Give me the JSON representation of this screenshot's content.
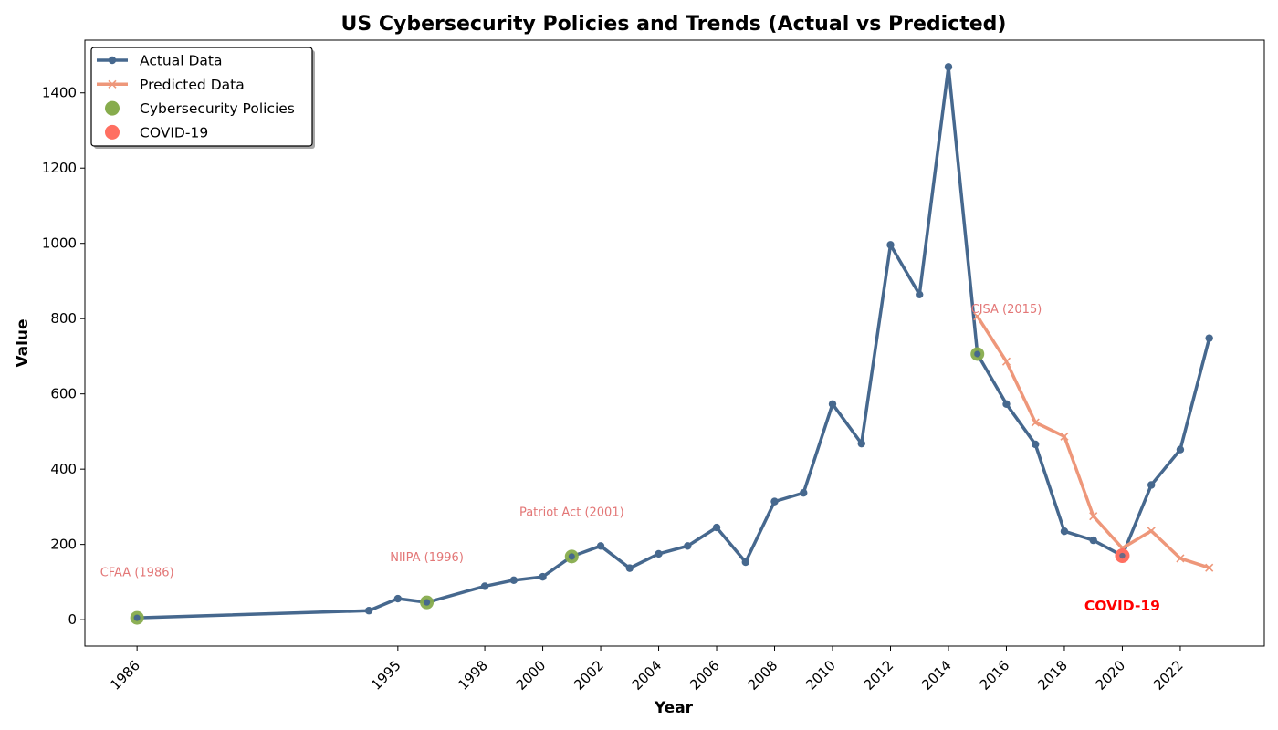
{
  "chart_data": {
    "type": "line",
    "title": "US Cybersecurity Policies and Trends (Actual vs Predicted)",
    "xlabel": "Year",
    "ylabel": "Value",
    "xlim": [
      1984.2,
      2024.9
    ],
    "ylim": [
      -70,
      1540
    ],
    "x_ticks": [
      1986,
      1995,
      1998,
      2000,
      2002,
      2004,
      2006,
      2008,
      2010,
      2012,
      2014,
      2016,
      2018,
      2020,
      2022
    ],
    "y_ticks": [
      0,
      200,
      400,
      600,
      800,
      1000,
      1200,
      1400
    ],
    "grid": false,
    "legend_position": "top-left",
    "legend": [
      {
        "label": "Actual Data",
        "kind": "line-dot",
        "color": "#46688e"
      },
      {
        "label": "Predicted Data",
        "kind": "line-x",
        "color": "#ee977a"
      },
      {
        "label": "Cybersecurity Policies",
        "kind": "marker",
        "color": "#87ac4d"
      },
      {
        "label": "COVID-19",
        "kind": "marker",
        "color": "#ff6f61"
      }
    ],
    "series": [
      {
        "name": "Actual Data",
        "color": "#46688e",
        "x": [
          1986,
          1994,
          1995,
          1996,
          1998,
          1999,
          2000,
          2001,
          2002,
          2003,
          2004,
          2005,
          2006,
          2007,
          2008,
          2009,
          2010,
          2011,
          2012,
          2013,
          2014,
          2015,
          2016,
          2017,
          2018,
          2019,
          2020,
          2021,
          2022,
          2023
        ],
        "y": [
          5,
          24,
          56,
          46,
          89,
          105,
          114,
          168,
          196,
          137,
          175,
          196,
          245,
          153,
          314,
          337,
          573,
          468,
          996,
          864,
          1469,
          706,
          573,
          466,
          235,
          211,
          170,
          358,
          452,
          748
        ]
      },
      {
        "name": "Predicted Data",
        "color": "#ee977a",
        "x": [
          2015,
          2016,
          2017,
          2018,
          2019,
          2020,
          2021,
          2022,
          2023
        ],
        "y": [
          806,
          686,
          524,
          487,
          275,
          190,
          236,
          163,
          138
        ]
      }
    ],
    "policy_points": {
      "name": "Cybersecurity Policies",
      "color": "#87ac4d",
      "points": [
        {
          "x": 1986,
          "y": 5
        },
        {
          "x": 1996,
          "y": 46
        },
        {
          "x": 2001,
          "y": 168
        },
        {
          "x": 2015,
          "y": 706
        }
      ]
    },
    "covid_point": {
      "name": "COVID-19",
      "color": "#ff6f61",
      "x": 2020,
      "y": 170
    },
    "annotations": [
      {
        "text": "CFAA (1986)",
        "x": 1986,
        "y": 115,
        "color": "#e37777"
      },
      {
        "text": "NIIPA (1996)",
        "x": 1996,
        "y": 155,
        "color": "#e37777"
      },
      {
        "text": "Patriot Act (2001)",
        "x": 2001,
        "y": 275,
        "color": "#e37777"
      },
      {
        "text": "CISA (2015)",
        "x": 2016,
        "y": 815,
        "color": "#e37777"
      }
    ],
    "covid_annotation": {
      "text": "COVID-19",
      "x": 2020,
      "y": 25,
      "color": "#ff0000"
    }
  }
}
